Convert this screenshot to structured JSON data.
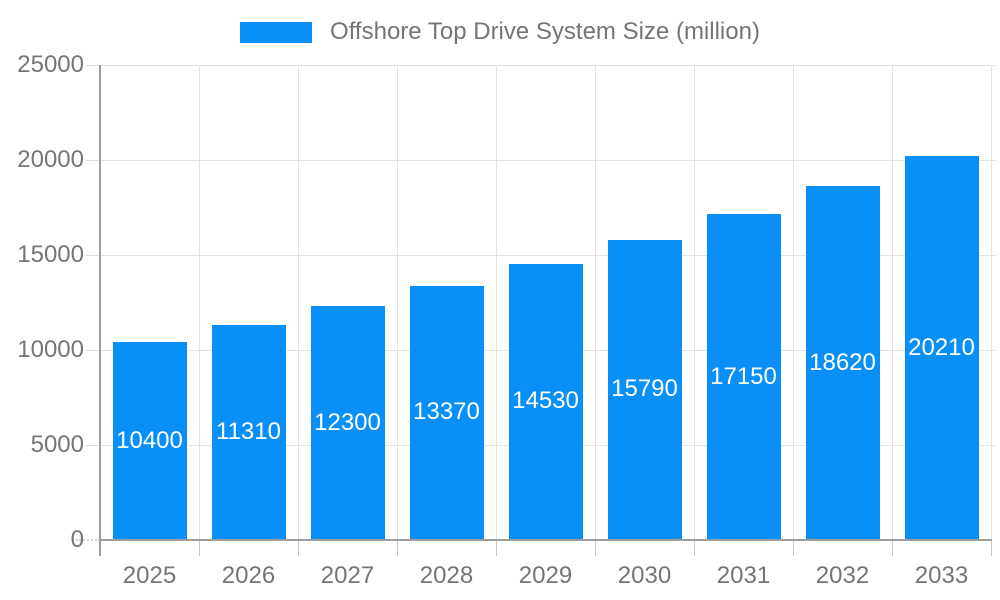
{
  "chart_data": {
    "type": "bar",
    "title": "Offshore Top Drive System Size (million)",
    "categories": [
      "2025",
      "2026",
      "2027",
      "2028",
      "2029",
      "2030",
      "2031",
      "2032",
      "2033"
    ],
    "values": [
      10400,
      11310,
      12300,
      13370,
      14530,
      15790,
      17150,
      18620,
      20210
    ],
    "xlabel": "",
    "ylabel": "",
    "ylim": [
      0,
      25000
    ],
    "yticks": [
      0,
      5000,
      10000,
      15000,
      20000,
      25000
    ],
    "ytick_labels": [
      "0",
      "5000",
      "10000",
      "15000",
      "20000",
      "25000"
    ],
    "grid": true,
    "legend_position": "top-center",
    "value_labels_shown_inside_bars": true,
    "colors": {
      "bar": "#0990F8",
      "value_label": "#FFFFFF",
      "axis_text": "#757575",
      "legend_text": "#757575",
      "axis_line": "#9E9E9E",
      "gridline": "#E4E4E4",
      "tick": "#C9C9C9",
      "background": "#FFFFFF"
    }
  }
}
